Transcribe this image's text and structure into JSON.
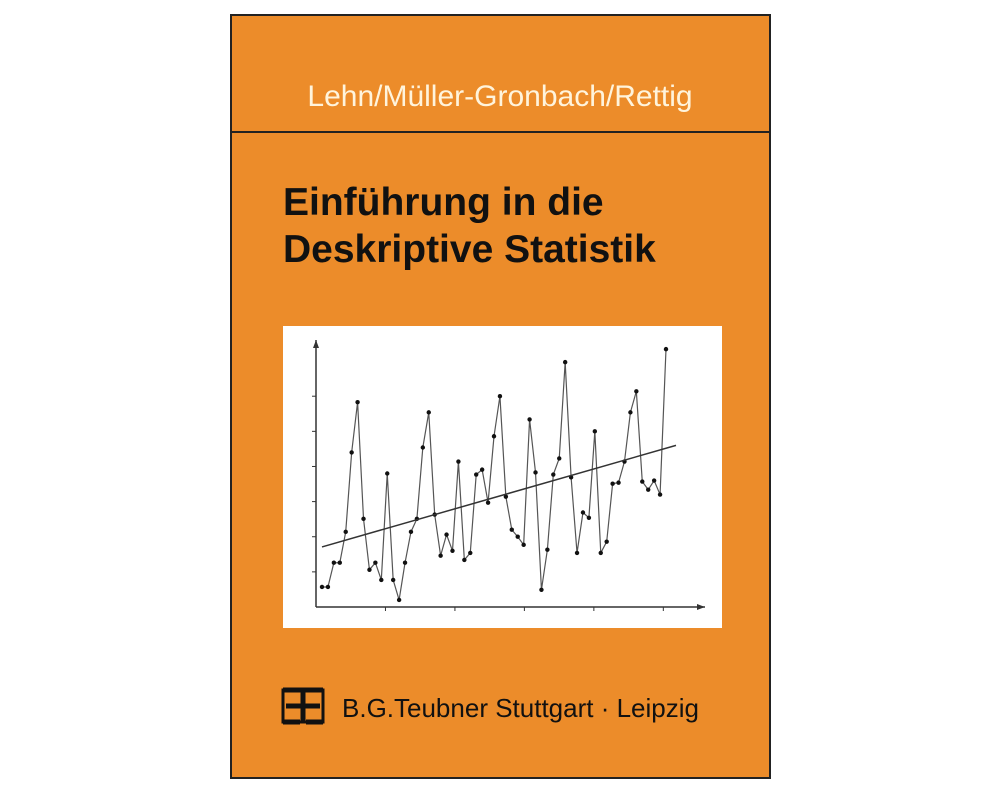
{
  "cover": {
    "authors": "Lehn/Müller-Gronbach/Rettig",
    "title_line1": "Einführung in die",
    "title_line2": "Deskriptive Statistik",
    "publisher": "B.G.Teubner Stuttgart · Leipzig",
    "illustration": {
      "type": "line",
      "values": [
        0.57,
        0.57,
        1.26,
        1.26,
        2.14,
        4.4,
        5.83,
        2.51,
        1.06,
        1.26,
        0.77,
        3.8,
        0.77,
        0.2,
        1.26,
        2.14,
        2.51,
        4.54,
        5.54,
        2.63,
        1.46,
        2.06,
        1.6,
        4.14,
        1.34,
        1.54,
        3.77,
        3.91,
        2.97,
        4.86,
        6.0,
        3.14,
        2.2,
        2.0,
        1.77,
        5.34,
        3.83,
        0.49,
        1.63,
        3.77,
        4.23,
        6.97,
        3.69,
        1.54,
        2.69,
        2.54,
        5.0,
        1.54,
        1.86,
        3.51,
        3.54,
        4.14,
        5.54,
        6.14,
        3.57,
        3.34,
        3.6,
        3.2,
        7.34
      ],
      "trend": [
        1.71,
        4.6
      ],
      "ylim": [
        0,
        7.6
      ],
      "yticks": [
        1,
        2,
        3,
        4,
        5,
        6
      ],
      "xlim": [
        0,
        5.6
      ],
      "xticks": [
        1,
        2,
        3,
        4,
        5
      ]
    }
  }
}
